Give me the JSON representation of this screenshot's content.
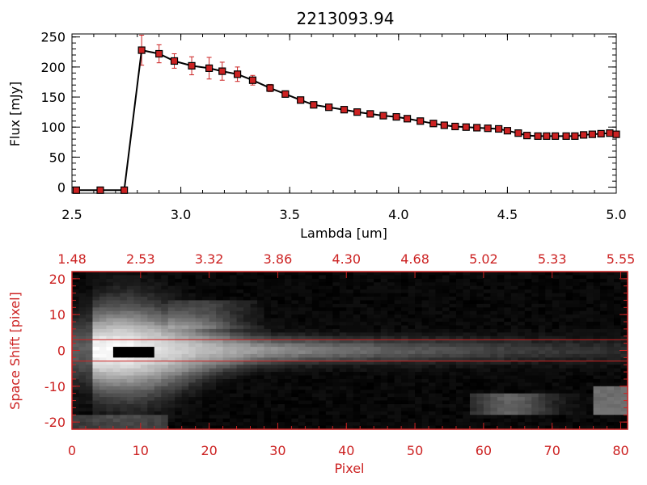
{
  "chart_data": [
    {
      "type": "line",
      "title": "2213093.94",
      "xlabel": "Lambda [um]",
      "ylabel": "Flux [mJy]",
      "xlim": [
        2.5,
        5.0
      ],
      "ylim": [
        -10,
        255
      ],
      "x_ticks": [
        "2.5",
        "3.0",
        "3.5",
        "4.0",
        "4.5",
        "5.0"
      ],
      "x_tick_values": [
        2.5,
        3.0,
        3.5,
        4.0,
        4.5,
        5.0
      ],
      "y_ticks": [
        "0",
        "50",
        "100",
        "150",
        "200",
        "250"
      ],
      "y_tick_values": [
        0,
        50,
        100,
        150,
        200,
        250
      ],
      "line_color": "#000000",
      "marker_color": "#cc2222",
      "error_color": "#cc2222",
      "series": [
        {
          "x": [
            2.52,
            2.63,
            2.74,
            2.82,
            2.9,
            2.97,
            3.05,
            3.13,
            3.19,
            3.26,
            3.33,
            3.41,
            3.48,
            3.55,
            3.61,
            3.68,
            3.75,
            3.81,
            3.87,
            3.93,
            3.99,
            4.04,
            4.1,
            4.16,
            4.21,
            4.26,
            4.31,
            4.36,
            4.41,
            4.46,
            4.5,
            4.55,
            4.59,
            4.64,
            4.68,
            4.72,
            4.77,
            4.81,
            4.85,
            4.89,
            4.93,
            4.97,
            5.0
          ],
          "y": [
            -5,
            -5,
            -5,
            228,
            222,
            210,
            202,
            198,
            193,
            188,
            178,
            165,
            155,
            145,
            137,
            133,
            129,
            125,
            122,
            119,
            117,
            114,
            110,
            106,
            103,
            101,
            100,
            99,
            98,
            97,
            94,
            90,
            86,
            85,
            85,
            85,
            85,
            85,
            87,
            88,
            89,
            90,
            88
          ],
          "err": [
            0,
            0,
            0,
            25,
            15,
            12,
            15,
            18,
            15,
            12,
            8,
            6,
            5,
            4,
            3,
            3,
            3,
            3,
            3,
            3,
            3,
            3,
            3,
            3,
            3,
            3,
            3,
            3,
            3,
            3,
            3,
            3,
            3,
            3,
            3,
            3,
            3,
            3,
            3,
            3,
            3,
            3,
            3
          ]
        }
      ]
    },
    {
      "type": "heatmap",
      "xlabel": "Pixel",
      "ylabel": "Space Shift [pixel]",
      "xlim": [
        0,
        81
      ],
      "ylim": [
        -22,
        22
      ],
      "x_ticks": [
        "0",
        "10",
        "20",
        "30",
        "40",
        "50",
        "60",
        "70",
        "80"
      ],
      "x_tick_values": [
        0,
        10,
        20,
        30,
        40,
        50,
        60,
        70,
        80
      ],
      "y_ticks": [
        "-20",
        "-10",
        "0",
        "10",
        "20"
      ],
      "y_tick_values": [
        -20,
        -10,
        0,
        10,
        20
      ],
      "top_ticks": [
        "1.48",
        "2.53",
        "3.32",
        "3.86",
        "4.30",
        "4.68",
        "5.02",
        "5.33",
        "5.55"
      ],
      "top_tick_values": [
        0,
        10,
        20,
        30,
        40,
        50,
        60,
        70,
        80
      ],
      "aperture_rows": [
        -3,
        3
      ],
      "axis_color": "#cc2222",
      "colormap": "gray"
    }
  ]
}
